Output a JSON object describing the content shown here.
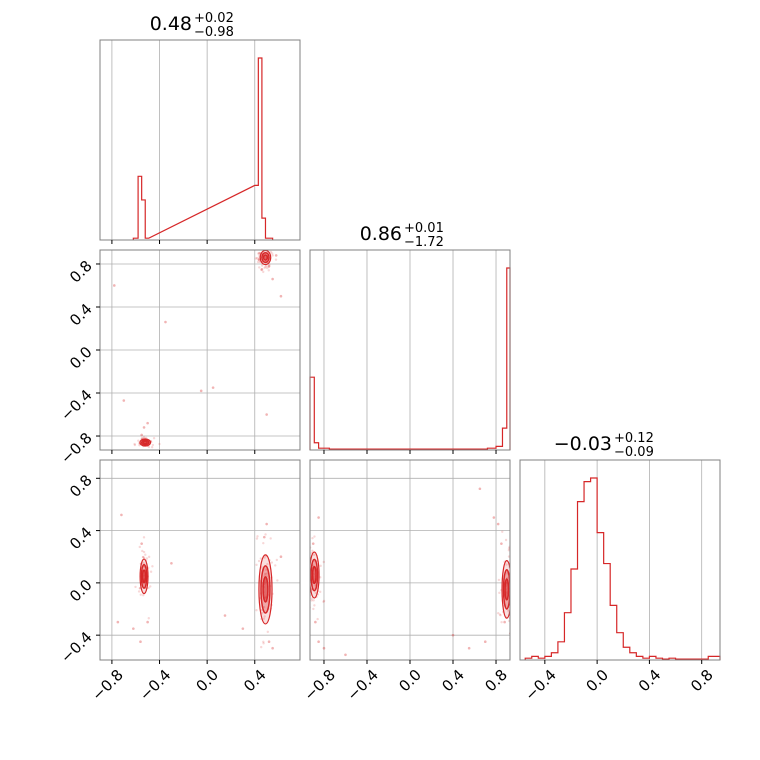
{
  "chart_data": [
    {
      "type": "corner",
      "colors": {
        "main": "#d62728",
        "grid": "#b0b0b0",
        "frame": "#808080"
      },
      "ticks": [
        -0.8,
        -0.4,
        0.0,
        0.4,
        0.8
      ],
      "tick_labels": [
        "−0.8",
        "−0.4",
        "0.0",
        "0.4",
        "0.8"
      ],
      "grid": true,
      "params": [
        {
          "range": [
            -0.9,
            0.78
          ],
          "title": {
            "value": "0.48",
            "plus": "+0.02",
            "minus": "−0.98"
          }
        },
        {
          "range": [
            -0.93,
            0.93
          ],
          "title": {
            "value": "0.86",
            "plus": "+0.01",
            "minus": "−1.72"
          }
        },
        {
          "range": [
            -0.59,
            0.94
          ],
          "title": {
            "value": "−0.03",
            "plus": "+0.12",
            "minus": "−0.09"
          }
        }
      ],
      "histograms": [
        {
          "param": 0,
          "bins": [
            [
              -0.62,
              -0.58,
              0.01
            ],
            [
              -0.58,
              -0.55,
              0.35
            ],
            [
              -0.55,
              -0.52,
              0.22
            ],
            [
              -0.52,
              -0.49,
              0.01
            ],
            [
              0.4,
              0.43,
              0.3
            ],
            [
              0.43,
              0.46,
              1.0
            ],
            [
              0.46,
              0.49,
              0.12
            ],
            [
              0.49,
              0.55,
              0.01
            ]
          ]
        },
        {
          "param": 1,
          "bins": [
            [
              -0.93,
              -0.89,
              0.4
            ],
            [
              -0.89,
              -0.85,
              0.04
            ],
            [
              -0.85,
              -0.75,
              0.01
            ],
            [
              -0.75,
              0.72,
              0.005
            ],
            [
              0.72,
              0.8,
              0.01
            ],
            [
              0.8,
              0.86,
              0.02
            ],
            [
              0.86,
              0.9,
              0.12
            ],
            [
              0.9,
              0.93,
              1.0
            ]
          ]
        },
        {
          "param": 2,
          "bins": [
            [
              -0.55,
              -0.5,
              0.01
            ],
            [
              -0.5,
              -0.45,
              0.02
            ],
            [
              -0.45,
              -0.4,
              0.01
            ],
            [
              -0.4,
              -0.35,
              0.02
            ],
            [
              -0.35,
              -0.3,
              0.04
            ],
            [
              -0.3,
              -0.25,
              0.1
            ],
            [
              -0.25,
              -0.2,
              0.26
            ],
            [
              -0.2,
              -0.15,
              0.5
            ],
            [
              -0.15,
              -0.1,
              0.87
            ],
            [
              -0.1,
              -0.05,
              0.98
            ],
            [
              -0.05,
              0.0,
              1.0
            ],
            [
              0.0,
              0.05,
              0.7
            ],
            [
              0.05,
              0.1,
              0.53
            ],
            [
              0.1,
              0.15,
              0.3
            ],
            [
              0.15,
              0.2,
              0.15
            ],
            [
              0.2,
              0.25,
              0.07
            ],
            [
              0.25,
              0.3,
              0.04
            ],
            [
              0.3,
              0.35,
              0.02
            ],
            [
              0.35,
              0.4,
              0.01
            ],
            [
              0.4,
              0.45,
              0.02
            ],
            [
              0.45,
              0.5,
              0.01
            ],
            [
              0.5,
              0.55,
              0.005
            ],
            [
              0.55,
              0.6,
              0.01
            ],
            [
              0.6,
              0.65,
              0.005
            ],
            [
              0.65,
              0.85,
              0.005
            ],
            [
              0.85,
              0.94,
              0.02
            ]
          ]
        }
      ],
      "pairs": [
        {
          "x_param": 0,
          "y_param": 1,
          "clusters": [
            {
              "x": 0.49,
              "y": 0.86,
              "sx": 0.02,
              "sy": 0.03
            },
            {
              "x": -0.52,
              "y": -0.86,
              "sx": 0.02,
              "sy": 0.015
            }
          ],
          "points": [
            [
              0.52,
              0.78
            ],
            [
              0.46,
              0.75
            ],
            [
              0.55,
              0.66
            ],
            [
              0.58,
              0.88
            ],
            [
              0.44,
              0.9
            ],
            [
              -0.53,
              -0.72
            ],
            [
              -0.5,
              -0.68
            ],
            [
              -0.55,
              -0.79
            ],
            [
              -0.78,
              0.6
            ],
            [
              -0.35,
              0.26
            ],
            [
              -0.05,
              -0.38
            ],
            [
              0.05,
              -0.35
            ],
            [
              -0.7,
              -0.47
            ],
            [
              0.62,
              0.5
            ],
            [
              0.5,
              -0.6
            ]
          ]
        },
        {
          "x_param": 0,
          "y_param": 2,
          "clusters": [
            {
              "x": -0.53,
              "y": 0.05,
              "sx": 0.015,
              "sy": 0.06
            },
            {
              "x": 0.49,
              "y": -0.05,
              "sx": 0.025,
              "sy": 0.12
            }
          ],
          "points": [
            [
              -0.55,
              0.3
            ],
            [
              -0.5,
              -0.3
            ],
            [
              -0.56,
              -0.45
            ],
            [
              0.5,
              0.45
            ],
            [
              0.48,
              0.35
            ],
            [
              0.52,
              -0.45
            ],
            [
              0.55,
              -0.5
            ],
            [
              -0.72,
              0.52
            ],
            [
              -0.62,
              -0.35
            ],
            [
              -0.75,
              -0.3
            ],
            [
              0.62,
              0.2
            ],
            [
              -0.3,
              0.15
            ],
            [
              0.15,
              -0.25
            ],
            [
              0.3,
              -0.35
            ]
          ]
        },
        {
          "x_param": 1,
          "y_param": 2,
          "clusters": [
            {
              "x": -0.89,
              "y": 0.06,
              "sx": 0.02,
              "sy": 0.08
            },
            {
              "x": 0.9,
              "y": -0.05,
              "sx": 0.02,
              "sy": 0.1
            }
          ],
          "points": [
            [
              -0.88,
              -0.3
            ],
            [
              -0.85,
              -0.45
            ],
            [
              -0.8,
              -0.5
            ],
            [
              -0.9,
              0.3
            ],
            [
              0.82,
              0.45
            ],
            [
              0.78,
              0.5
            ],
            [
              0.85,
              0.3
            ],
            [
              0.88,
              -0.3
            ],
            [
              0.7,
              -0.45
            ],
            [
              0.55,
              -0.5
            ],
            [
              -0.6,
              -0.55
            ],
            [
              0.65,
              0.72
            ],
            [
              -0.85,
              0.5
            ],
            [
              0.4,
              -0.4
            ]
          ]
        }
      ]
    }
  ]
}
